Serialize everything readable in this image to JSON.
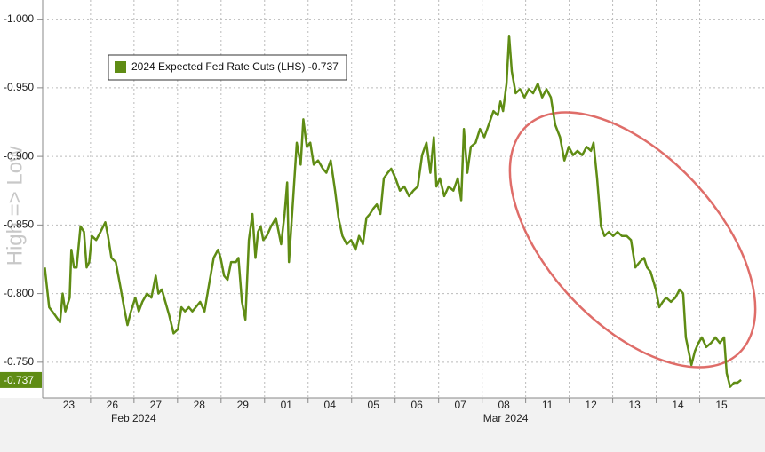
{
  "chart_data": {
    "type": "line",
    "y_axis_label": "High => Low",
    "legend": true,
    "last_value": -0.737,
    "grid": true,
    "xlim": [
      -0.1,
      16.5
    ],
    "ylim": [
      -0.724,
      -1.014
    ],
    "yticks": [
      {
        "value": -1.0,
        "label": "-1.000"
      },
      {
        "value": -0.95,
        "label": "-0.950"
      },
      {
        "value": -0.9,
        "label": "-0.900"
      },
      {
        "value": -0.85,
        "label": "-0.850"
      },
      {
        "value": -0.8,
        "label": "-0.800"
      },
      {
        "value": -0.75,
        "label": "-0.750"
      }
    ],
    "xticks": [
      {
        "value": 0.5,
        "label": "23"
      },
      {
        "value": 1.5,
        "label": "26"
      },
      {
        "value": 2.5,
        "label": "27"
      },
      {
        "value": 3.5,
        "label": "28"
      },
      {
        "value": 4.5,
        "label": "29"
      },
      {
        "value": 5.5,
        "label": "01"
      },
      {
        "value": 6.5,
        "label": "04"
      },
      {
        "value": 7.5,
        "label": "05"
      },
      {
        "value": 8.5,
        "label": "06"
      },
      {
        "value": 9.5,
        "label": "07"
      },
      {
        "value": 10.5,
        "label": "08"
      },
      {
        "value": 11.5,
        "label": "11"
      },
      {
        "value": 12.5,
        "label": "12"
      },
      {
        "value": 13.5,
        "label": "13"
      },
      {
        "value": 14.5,
        "label": "14"
      },
      {
        "value": 15.5,
        "label": "15"
      }
    ],
    "month_labels": [
      {
        "value": 1.99,
        "label": "Feb 2024"
      },
      {
        "value": 10.54,
        "label": "Mar 2024"
      }
    ],
    "series": [
      {
        "name": "2024 Expected Fed Rate Cuts (LHS)",
        "color": "#5f8c14",
        "x": [
          -0.05,
          0.05,
          0.19,
          0.3,
          0.36,
          0.42,
          0.52,
          0.56,
          0.62,
          0.68,
          0.77,
          0.85,
          0.91,
          0.97,
          1.03,
          1.13,
          1.23,
          1.34,
          1.4,
          1.48,
          1.58,
          1.68,
          1.77,
          1.85,
          1.93,
          2.03,
          2.11,
          2.19,
          2.3,
          2.4,
          2.5,
          2.56,
          2.64,
          2.72,
          2.81,
          2.91,
          3.01,
          3.09,
          3.17,
          3.26,
          3.34,
          3.42,
          3.52,
          3.62,
          3.72,
          3.83,
          3.93,
          3.99,
          4.07,
          4.15,
          4.23,
          4.34,
          4.4,
          4.48,
          4.56,
          4.64,
          4.72,
          4.79,
          4.85,
          4.91,
          4.97,
          5.05,
          5.15,
          5.26,
          5.38,
          5.46,
          5.52,
          5.56,
          5.66,
          5.74,
          5.83,
          5.89,
          5.97,
          6.05,
          6.13,
          6.23,
          6.34,
          6.42,
          6.52,
          6.62,
          6.7,
          6.79,
          6.89,
          6.99,
          7.09,
          7.17,
          7.26,
          7.34,
          7.42,
          7.5,
          7.58,
          7.66,
          7.74,
          7.83,
          7.91,
          8.01,
          8.11,
          8.21,
          8.32,
          8.42,
          8.52,
          8.62,
          8.72,
          8.81,
          8.89,
          8.95,
          9.03,
          9.13,
          9.23,
          9.34,
          9.44,
          9.52,
          9.58,
          9.66,
          9.74,
          9.85,
          9.95,
          10.05,
          10.15,
          10.26,
          10.36,
          10.42,
          10.48,
          10.56,
          10.62,
          10.68,
          10.77,
          10.87,
          10.97,
          11.07,
          11.17,
          11.28,
          11.38,
          11.48,
          11.58,
          11.68,
          11.79,
          11.89,
          11.99,
          12.09,
          12.19,
          12.3,
          12.4,
          12.5,
          12.56,
          12.64,
          12.73,
          12.81,
          12.91,
          13.01,
          13.11,
          13.21,
          13.32,
          13.42,
          13.52,
          13.62,
          13.72,
          13.79,
          13.87,
          13.99,
          14.07,
          14.15,
          14.23,
          14.34,
          14.44,
          14.54,
          14.62,
          14.68,
          14.81,
          14.89,
          14.97,
          15.05,
          15.15,
          15.26,
          15.36,
          15.46,
          15.56,
          15.62,
          15.7,
          15.79,
          15.87,
          15.95
        ],
        "values": [
          -0.819,
          -0.79,
          -0.784,
          -0.779,
          -0.8,
          -0.787,
          -0.797,
          -0.832,
          -0.819,
          -0.819,
          -0.849,
          -0.845,
          -0.819,
          -0.823,
          -0.842,
          -0.839,
          -0.845,
          -0.852,
          -0.842,
          -0.826,
          -0.823,
          -0.806,
          -0.79,
          -0.777,
          -0.787,
          -0.797,
          -0.787,
          -0.794,
          -0.8,
          -0.797,
          -0.813,
          -0.8,
          -0.803,
          -0.794,
          -0.784,
          -0.771,
          -0.774,
          -0.79,
          -0.787,
          -0.79,
          -0.787,
          -0.79,
          -0.794,
          -0.787,
          -0.806,
          -0.826,
          -0.832,
          -0.826,
          -0.813,
          -0.81,
          -0.823,
          -0.823,
          -0.826,
          -0.794,
          -0.781,
          -0.839,
          -0.858,
          -0.826,
          -0.845,
          -0.849,
          -0.839,
          -0.842,
          -0.849,
          -0.855,
          -0.836,
          -0.858,
          -0.881,
          -0.823,
          -0.871,
          -0.91,
          -0.894,
          -0.927,
          -0.907,
          -0.91,
          -0.894,
          -0.897,
          -0.891,
          -0.888,
          -0.897,
          -0.875,
          -0.855,
          -0.842,
          -0.836,
          -0.839,
          -0.832,
          -0.842,
          -0.836,
          -0.855,
          -0.858,
          -0.862,
          -0.865,
          -0.858,
          -0.884,
          -0.888,
          -0.891,
          -0.884,
          -0.875,
          -0.878,
          -0.871,
          -0.875,
          -0.878,
          -0.901,
          -0.91,
          -0.888,
          -0.914,
          -0.878,
          -0.884,
          -0.871,
          -0.878,
          -0.875,
          -0.884,
          -0.868,
          -0.92,
          -0.888,
          -0.907,
          -0.91,
          -0.92,
          -0.914,
          -0.923,
          -0.933,
          -0.93,
          -0.94,
          -0.933,
          -0.953,
          -0.988,
          -0.962,
          -0.946,
          -0.949,
          -0.943,
          -0.949,
          -0.946,
          -0.953,
          -0.943,
          -0.949,
          -0.943,
          -0.923,
          -0.914,
          -0.897,
          -0.907,
          -0.901,
          -0.904,
          -0.901,
          -0.907,
          -0.904,
          -0.91,
          -0.884,
          -0.849,
          -0.842,
          -0.845,
          -0.842,
          -0.845,
          -0.842,
          -0.842,
          -0.839,
          -0.819,
          -0.823,
          -0.826,
          -0.819,
          -0.816,
          -0.803,
          -0.79,
          -0.794,
          -0.797,
          -0.794,
          -0.797,
          -0.803,
          -0.8,
          -0.768,
          -0.748,
          -0.758,
          -0.764,
          -0.768,
          -0.761,
          -0.764,
          -0.768,
          -0.764,
          -0.768,
          -0.742,
          -0.732,
          -0.735,
          -0.735,
          -0.737
        ]
      }
    ]
  }
}
